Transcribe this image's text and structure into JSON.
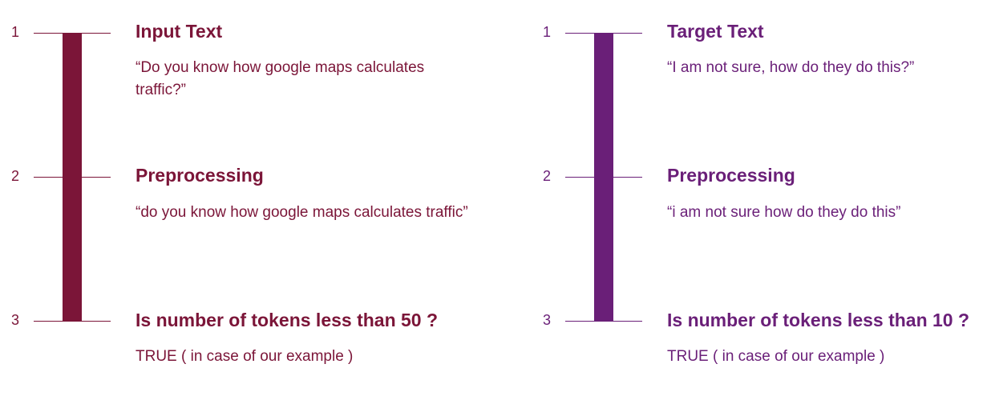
{
  "colors": {
    "left_accent": "#7b1538",
    "right_accent": "#6a1f78"
  },
  "left": {
    "steps": [
      {
        "number": "1",
        "heading": "Input Text",
        "text": "“Do you know how google maps calculates traffic?”"
      },
      {
        "number": "2",
        "heading": "Preprocessing",
        "text": "“do you know how google maps calculates traffic”"
      },
      {
        "number": "3",
        "heading": "Is number of tokens less than 50 ?",
        "text": "TRUE ( in case of our example )"
      }
    ]
  },
  "right": {
    "steps": [
      {
        "number": "1",
        "heading": "Target Text",
        "text": "“I am not sure, how do they do this?”"
      },
      {
        "number": "2",
        "heading": "Preprocessing",
        "text": "“i am not sure how do they do this”"
      },
      {
        "number": "3",
        "heading": "Is number of tokens less than 10 ?",
        "text": "TRUE ( in case of our example )"
      }
    ]
  }
}
